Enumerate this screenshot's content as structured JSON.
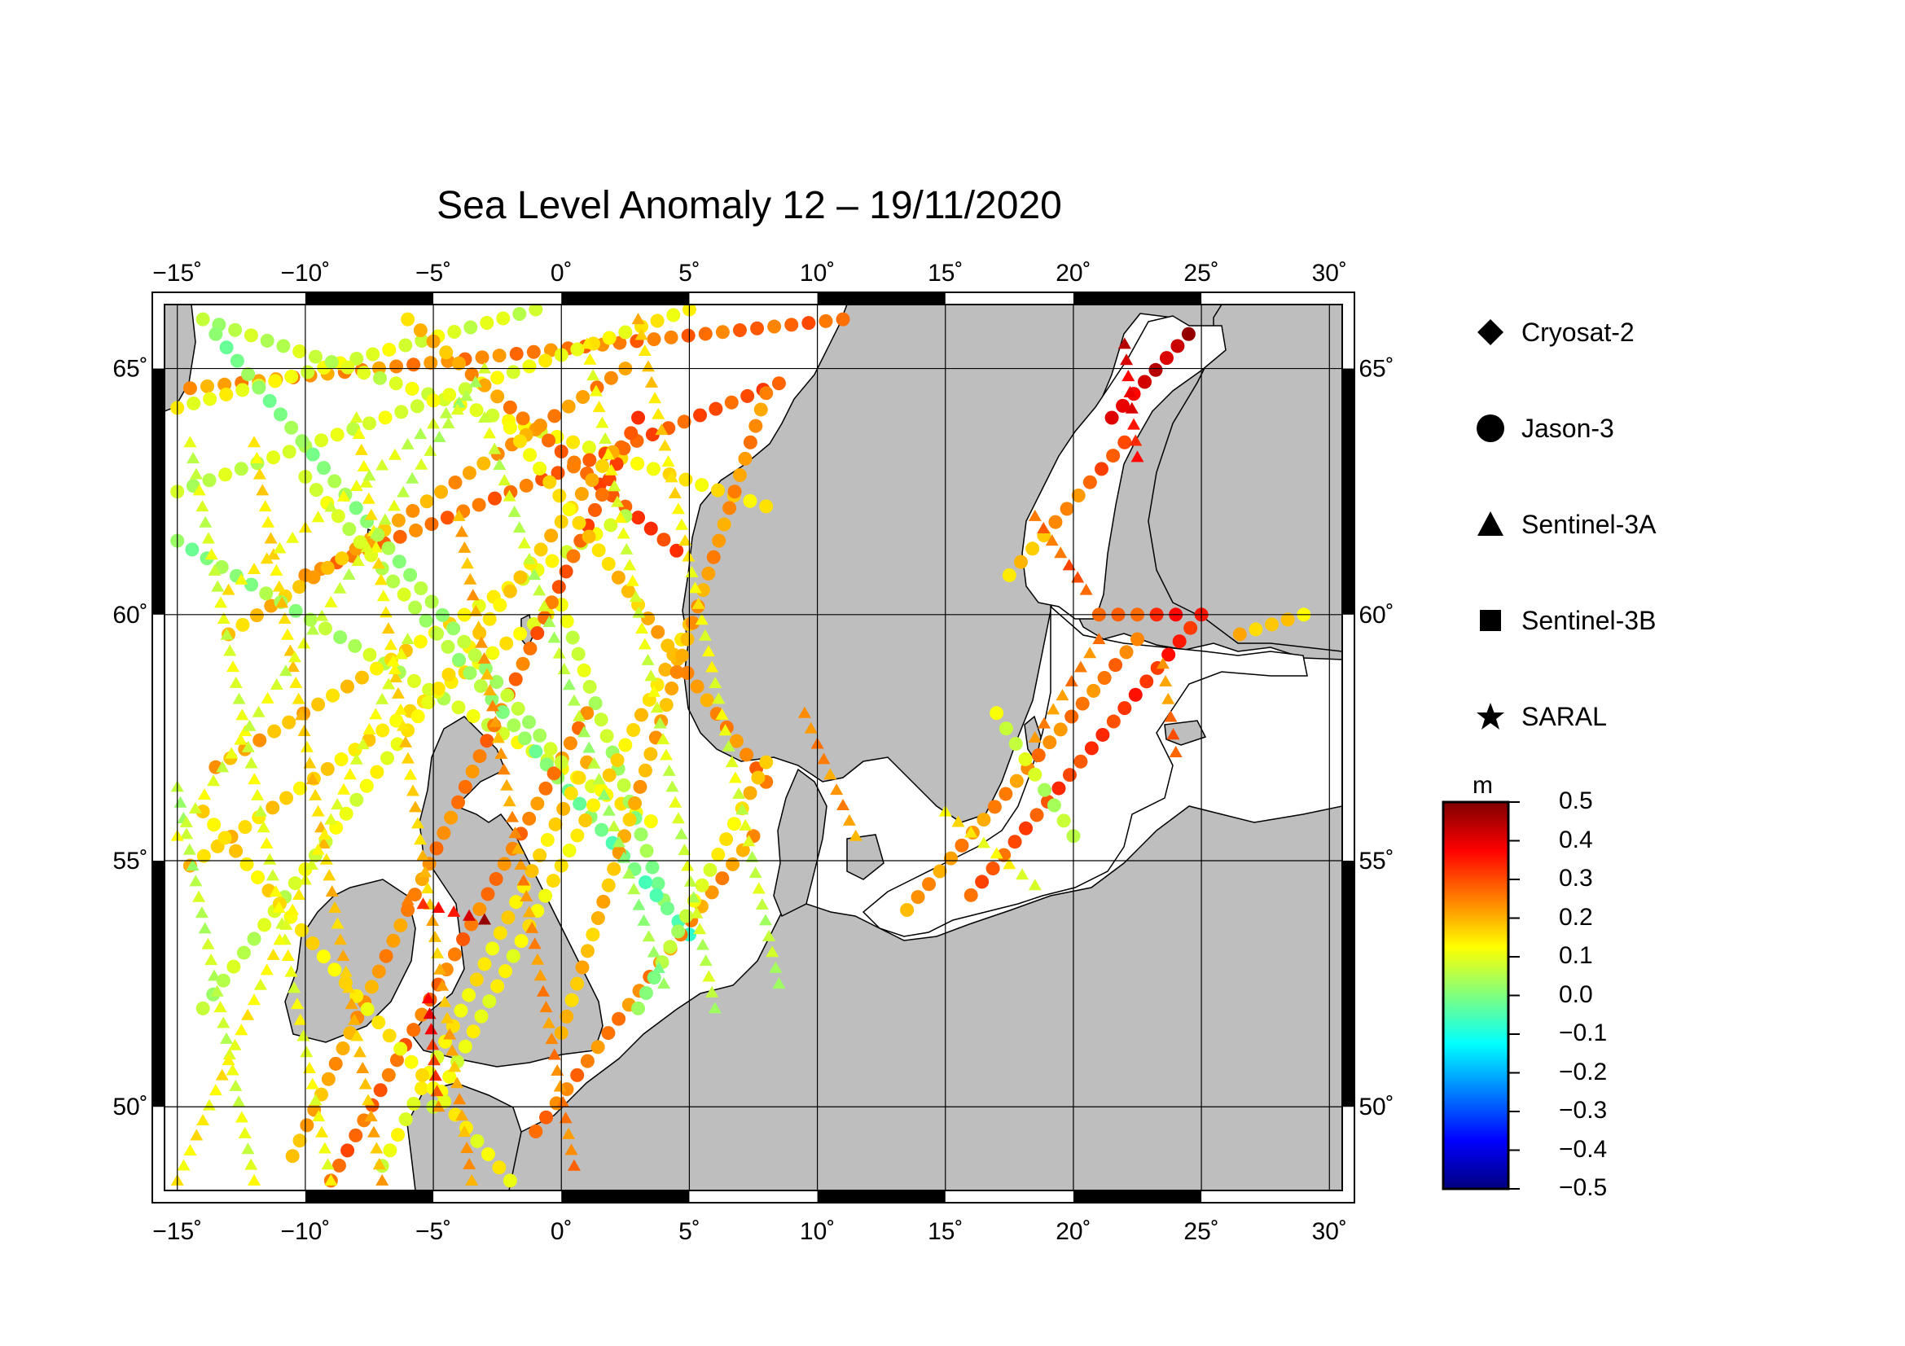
{
  "title": "Sea Level Anomaly 12 – 19/11/2020",
  "map": {
    "lon_range": [
      -15.5,
      30.5
    ],
    "lat_range": [
      48.3,
      66.3
    ],
    "lon_ticks": [
      -15,
      -10,
      -5,
      0,
      5,
      10,
      15,
      20,
      25,
      30
    ],
    "lat_ticks": [
      50,
      55,
      60,
      65
    ],
    "lon_tick_labels": [
      "−15˚",
      "−10˚",
      "−5˚",
      "0˚",
      "5˚",
      "10˚",
      "15˚",
      "20˚",
      "25˚",
      "30˚"
    ],
    "lat_tick_labels": [
      "50˚",
      "55˚",
      "60˚",
      "65˚"
    ],
    "land_color": "#bebebe",
    "sea_color": "#ffffff"
  },
  "legend": {
    "items": [
      {
        "label": "Cryosat-2",
        "symbol": "diamond-icon"
      },
      {
        "label": "Jason-3",
        "symbol": "circle-icon"
      },
      {
        "label": "Sentinel-3A",
        "symbol": "triangle-icon"
      },
      {
        "label": "Sentinel-3B",
        "symbol": "square-icon"
      },
      {
        "label": "SARAL",
        "symbol": "star-icon"
      }
    ]
  },
  "colorbar": {
    "unit": "m",
    "range": [
      -0.5,
      0.5
    ],
    "ticks": [
      "0.5",
      "0.4",
      "0.3",
      "0.2",
      "0.1",
      "0.0",
      "−0.1",
      "−0.2",
      "−0.3",
      "−0.4",
      "−0.5"
    ],
    "colors": [
      "#7f0000",
      "#ff0000",
      "#ff7f00",
      "#ffff00",
      "#7fff7f",
      "#00ffff",
      "#007fff",
      "#0000ff",
      "#00007f"
    ]
  },
  "chart_data": {
    "type": "scatter",
    "title": "Sea Level Anomaly 12 – 19/11/2020",
    "unit": "m",
    "series": [
      {
        "name": "Jason-3",
        "tracks": [
          {
            "from": [
              -14.5,
              64.6
            ],
            "to": [
              11.0,
              66.0
            ],
            "v0": 0.22,
            "v1": 0.28
          },
          {
            "from": [
              -15.0,
              64.2
            ],
            "to": [
              -1.0,
              66.2
            ],
            "v0": 0.12,
            "v1": 0.08
          },
          {
            "from": [
              -14.0,
              66.0
            ],
            "to": [
              8.0,
              62.2
            ],
            "v0": 0.05,
            "v1": 0.16
          },
          {
            "from": [
              -15.0,
              62.5
            ],
            "to": [
              5.0,
              66.2
            ],
            "v0": 0.06,
            "v1": 0.14
          },
          {
            "from": [
              -10.0,
              60.8
            ],
            "to": [
              8.5,
              64.7
            ],
            "v0": 0.25,
            "v1": 0.3
          },
          {
            "from": [
              -6.0,
              66.0
            ],
            "to": [
              4.5,
              61.3
            ],
            "v0": 0.18,
            "v1": 0.33
          },
          {
            "from": [
              -13.0,
              59.6
            ],
            "to": [
              2.5,
              65.0
            ],
            "v0": 0.18,
            "v1": 0.24
          },
          {
            "from": [
              -15.0,
              61.5
            ],
            "to": [
              3.5,
              55.8
            ],
            "v0": 0.0,
            "v1": 0.14
          },
          {
            "from": [
              -13.5,
              56.9
            ],
            "to": [
              2.5,
              62.0
            ],
            "v0": 0.22,
            "v1": 0.08
          },
          {
            "from": [
              -14.5,
              54.9
            ],
            "to": [
              0.0,
              60.2
            ],
            "v0": 0.18,
            "v1": 0.12
          },
          {
            "from": [
              0.0,
              60.2
            ],
            "to": [
              4.0,
              54.2
            ],
            "v0": 0.1,
            "v1": 0.0
          },
          {
            "from": [
              -10.5,
              49.0
            ],
            "to": [
              3.0,
              64.0
            ],
            "v0": 0.2,
            "v1": 0.3
          },
          {
            "from": [
              -14.0,
              52.0
            ],
            "to": [
              2.0,
              63.3
            ],
            "v0": 0.05,
            "v1": 0.2
          },
          {
            "from": [
              -10.0,
              62.8
            ],
            "to": [
              5.0,
              53.5
            ],
            "v0": 0.1,
            "v1": -0.05
          },
          {
            "from": [
              -2.0,
              63.8
            ],
            "to": [
              8.0,
              56.6
            ],
            "v0": 0.12,
            "v1": 0.26
          },
          {
            "from": [
              -5.0,
              50.0
            ],
            "to": [
              5.0,
              59.8
            ],
            "v0": 0.1,
            "v1": 0.18
          },
          {
            "from": [
              0.0,
              51.5
            ],
            "to": [
              8.0,
              64.5
            ],
            "v0": 0.18,
            "v1": 0.24
          },
          {
            "from": [
              -9.0,
              48.5
            ],
            "to": [
              1.0,
              58.0
            ],
            "v0": 0.28,
            "v1": 0.24
          },
          {
            "from": [
              -7.0,
              48.8
            ],
            "to": [
              1.0,
              57.0
            ],
            "v0": 0.1,
            "v1": 0.18
          },
          {
            "from": [
              -14.0,
              56.0
            ],
            "to": [
              -2.0,
              48.5
            ],
            "v0": 0.16,
            "v1": 0.12
          },
          {
            "from": [
              0.0,
              57.0
            ],
            "to": [
              -13.5,
              65.7
            ],
            "v0": 0.06,
            "v1": 0.0
          },
          {
            "from": [
              -1.0,
              49.5
            ],
            "to": [
              7.5,
              55.5
            ],
            "v0": 0.26,
            "v1": 0.22
          },
          {
            "from": [
              3.0,
              52.0
            ],
            "to": [
              8.0,
              57.0
            ],
            "v0": 0.0,
            "v1": 0.2
          },
          {
            "from": [
              13.5,
              54.0
            ],
            "to": [
              22.5,
              59.5
            ],
            "v0": 0.22,
            "v1": 0.26
          },
          {
            "from": [
              16.0,
              54.3
            ],
            "to": [
              25.0,
              60.0
            ],
            "v0": 0.28,
            "v1": 0.35
          },
          {
            "from": [
              20.0,
              55.5
            ],
            "to": [
              17.0,
              58.0
            ],
            "v0": 0.04,
            "v1": 0.1
          },
          {
            "from": [
              21.5,
              64.0
            ],
            "to": [
              24.5,
              65.7
            ],
            "v0": 0.38,
            "v1": 0.45
          },
          {
            "from": [
              17.5,
              60.8
            ],
            "to": [
              22.0,
              63.5
            ],
            "v0": 0.15,
            "v1": 0.32
          },
          {
            "from": [
              21.0,
              60.0
            ],
            "to": [
              24.0,
              60.0
            ],
            "v0": 0.25,
            "v1": 0.35
          },
          {
            "from": [
              26.5,
              59.6
            ],
            "to": [
              29.0,
              60.0
            ],
            "v0": 0.2,
            "v1": 0.15
          }
        ]
      },
      {
        "name": "Sentinel-3A",
        "tracks": [
          {
            "from": [
              -14.5,
              63.5
            ],
            "to": [
              -9.0,
              48.5
            ],
            "v0": 0.08,
            "v1": 0.12
          },
          {
            "from": [
              -12.0,
              63.5
            ],
            "to": [
              -7.0,
              48.5
            ],
            "v0": 0.15,
            "v1": 0.2
          },
          {
            "from": [
              -8.0,
              64.0
            ],
            "to": [
              -3.5,
              48.5
            ],
            "v0": 0.12,
            "v1": 0.22
          },
          {
            "from": [
              -4.0,
              62.0
            ],
            "to": [
              0.5,
              48.8
            ],
            "v0": 0.2,
            "v1": 0.25
          },
          {
            "from": [
              -15.0,
              56.5
            ],
            "to": [
              -12.0,
              48.5
            ],
            "v0": 0.04,
            "v1": 0.1
          },
          {
            "from": [
              -13.0,
              60.5
            ],
            "to": [
              -4.0,
              64.3
            ],
            "v0": 0.15,
            "v1": 0.05
          },
          {
            "from": [
              1.0,
              65.5
            ],
            "to": [
              6.0,
              52.0
            ],
            "v0": 0.12,
            "v1": 0.06
          },
          {
            "from": [
              3.0,
              66.0
            ],
            "to": [
              8.5,
              52.5
            ],
            "v0": 0.18,
            "v1": 0.05
          },
          {
            "from": [
              -3.0,
              64.0
            ],
            "to": [
              4.0,
              52.5
            ],
            "v0": 0.08,
            "v1": 0.02
          },
          {
            "from": [
              9.5,
              58.0
            ],
            "to": [
              11.5,
              55.5
            ],
            "v0": 0.25,
            "v1": 0.22
          },
          {
            "from": [
              -6.0,
              59.5
            ],
            "to": [
              -15.0,
              48.5
            ],
            "v0": 0.1,
            "v1": 0.14
          },
          {
            "from": [
              -15.0,
              55.5
            ],
            "to": [
              -3.0,
              65.0
            ],
            "v0": 0.1,
            "v1": 0.06
          },
          {
            "from": [
              18.5,
              62.0
            ],
            "to": [
              20.5,
              60.5
            ],
            "v0": 0.25,
            "v1": 0.3
          },
          {
            "from": [
              22.0,
              65.5
            ],
            "to": [
              22.5,
              63.2
            ],
            "v0": 0.42,
            "v1": 0.35
          },
          {
            "from": [
              23.5,
              59.0
            ],
            "to": [
              24.0,
              57.2
            ],
            "v0": 0.2,
            "v1": 0.3
          },
          {
            "from": [
              15.0,
              56.0
            ],
            "to": [
              18.5,
              54.5
            ],
            "v0": 0.15,
            "v1": 0.1
          },
          {
            "from": [
              18.5,
              57.5
            ],
            "to": [
              21.0,
              59.5
            ],
            "v0": 0.22,
            "v1": 0.26
          },
          {
            "from": [
              -6.0,
              54.2
            ],
            "to": [
              -3.0,
              53.8
            ],
            "v0": 0.28,
            "v1": 0.45
          },
          {
            "from": [
              -5.2,
              52.2
            ],
            "to": [
              -4.8,
              50.0
            ],
            "v0": 0.4,
            "v1": 0.26
          }
        ]
      }
    ]
  }
}
